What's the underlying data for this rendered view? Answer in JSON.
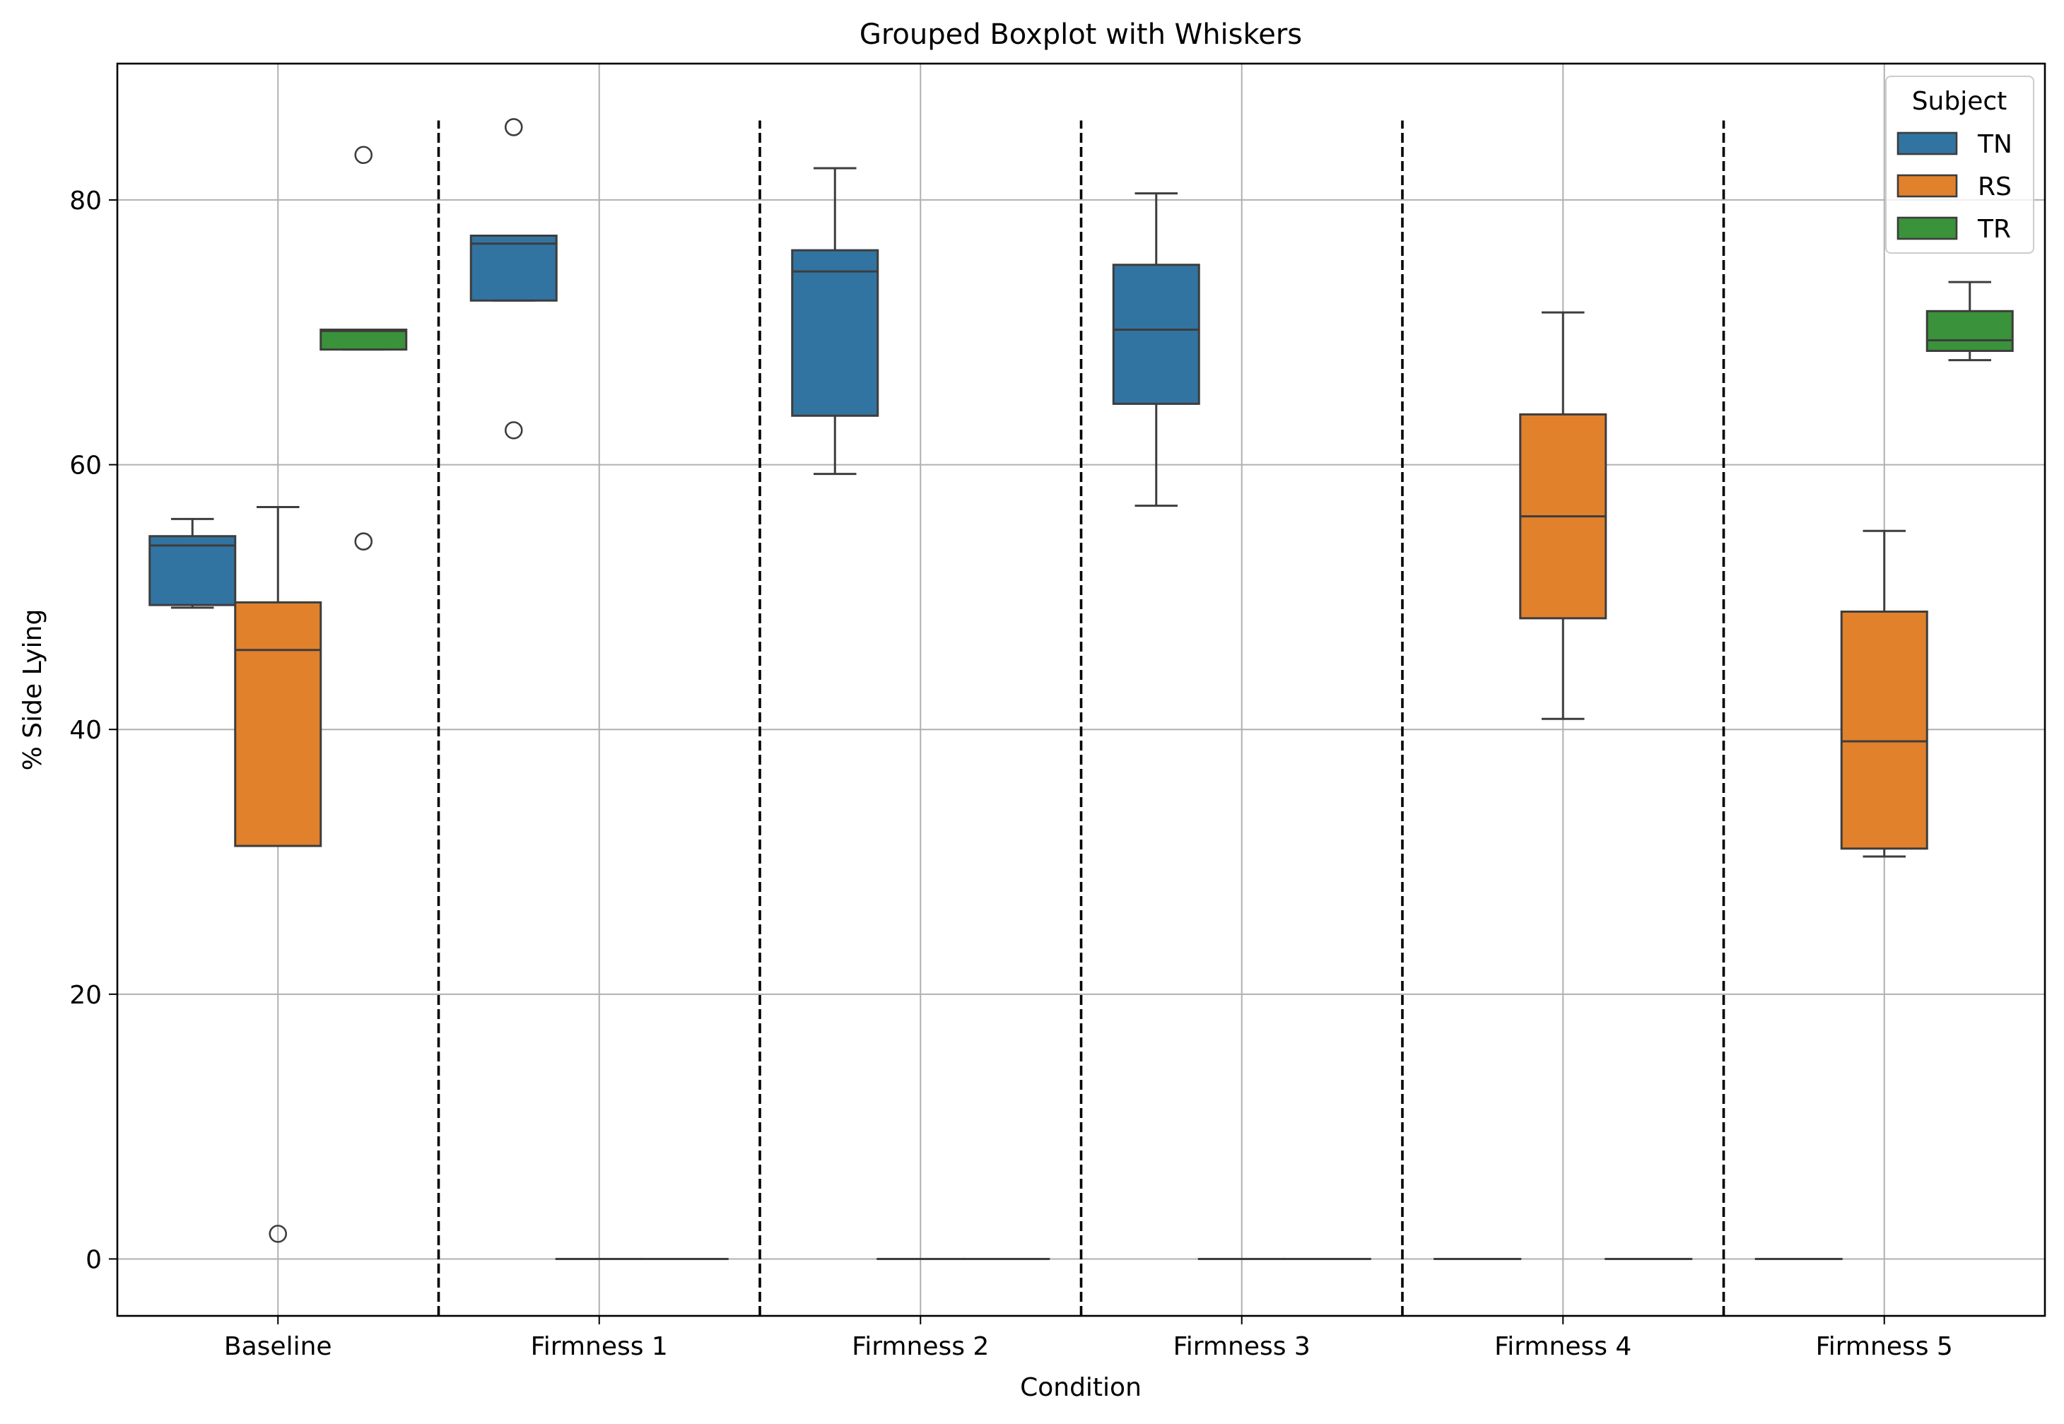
{
  "chart_data": {
    "type": "boxplot",
    "title": "Grouped Boxplot with Whiskers",
    "xlabel": "Condition",
    "ylabel": "% Side Lying",
    "categories": [
      "Baseline",
      "Firmness 1",
      "Firmness 2",
      "Firmness 3",
      "Firmness 4",
      "Firmness 5"
    ],
    "ylim": [
      -4.3,
      90.3
    ],
    "yticks": [
      0,
      20,
      40,
      60,
      80
    ],
    "grid": true,
    "legend": {
      "title": "Subject",
      "position": "top-right"
    },
    "separators": true,
    "series": [
      {
        "name": "TN",
        "color": "#3274a1",
        "boxes": [
          {
            "whislo": 49.2,
            "q1": 49.4,
            "med": 53.9,
            "q3": 54.6,
            "whishi": 55.9,
            "fliers": []
          },
          {
            "whislo": 72.4,
            "q1": 72.4,
            "med": 76.7,
            "q3": 77.3,
            "whishi": 77.3,
            "fliers": [
              62.6,
              85.5
            ]
          },
          {
            "whislo": 59.3,
            "q1": 63.7,
            "med": 74.6,
            "q3": 76.2,
            "whishi": 82.4,
            "fliers": []
          },
          {
            "whislo": 56.9,
            "q1": 64.6,
            "med": 70.2,
            "q3": 75.1,
            "whishi": 80.5,
            "fliers": []
          },
          {
            "whislo": 0,
            "q1": 0,
            "med": 0,
            "q3": 0,
            "whishi": 0,
            "fliers": []
          },
          {
            "whislo": 0,
            "q1": 0,
            "med": 0,
            "q3": 0,
            "whishi": 0,
            "fliers": []
          }
        ]
      },
      {
        "name": "RS",
        "color": "#e1812c",
        "boxes": [
          {
            "whislo": 31.2,
            "q1": 31.2,
            "med": 46.0,
            "q3": 49.6,
            "whishi": 56.8,
            "fliers": [
              1.9
            ]
          },
          {
            "whislo": 0,
            "q1": 0,
            "med": 0,
            "q3": 0,
            "whishi": 0,
            "fliers": []
          },
          {
            "whislo": 0,
            "q1": 0,
            "med": 0,
            "q3": 0,
            "whishi": 0,
            "fliers": []
          },
          {
            "whislo": 0,
            "q1": 0,
            "med": 0,
            "q3": 0,
            "whishi": 0,
            "fliers": []
          },
          {
            "whislo": 40.8,
            "q1": 48.4,
            "med": 56.1,
            "q3": 63.8,
            "whishi": 71.5,
            "fliers": []
          },
          {
            "whislo": 30.4,
            "q1": 31.0,
            "med": 39.1,
            "q3": 48.9,
            "whishi": 55.0,
            "fliers": []
          }
        ]
      },
      {
        "name": "TR",
        "color": "#3a923a",
        "boxes": [
          {
            "whislo": 68.7,
            "q1": 68.7,
            "med": 70.1,
            "q3": 70.2,
            "whishi": 70.2,
            "fliers": [
              54.2,
              83.4
            ]
          },
          {
            "whislo": 0,
            "q1": 0,
            "med": 0,
            "q3": 0,
            "whishi": 0,
            "fliers": []
          },
          {
            "whislo": 0,
            "q1": 0,
            "med": 0,
            "q3": 0,
            "whishi": 0,
            "fliers": []
          },
          {
            "whislo": 0,
            "q1": 0,
            "med": 0,
            "q3": 0,
            "whishi": 0,
            "fliers": []
          },
          {
            "whislo": 0,
            "q1": 0,
            "med": 0,
            "q3": 0,
            "whishi": 0,
            "fliers": []
          },
          {
            "whislo": 67.9,
            "q1": 68.6,
            "med": 69.4,
            "q3": 71.6,
            "whishi": 73.8,
            "fliers": []
          }
        ]
      }
    ]
  }
}
